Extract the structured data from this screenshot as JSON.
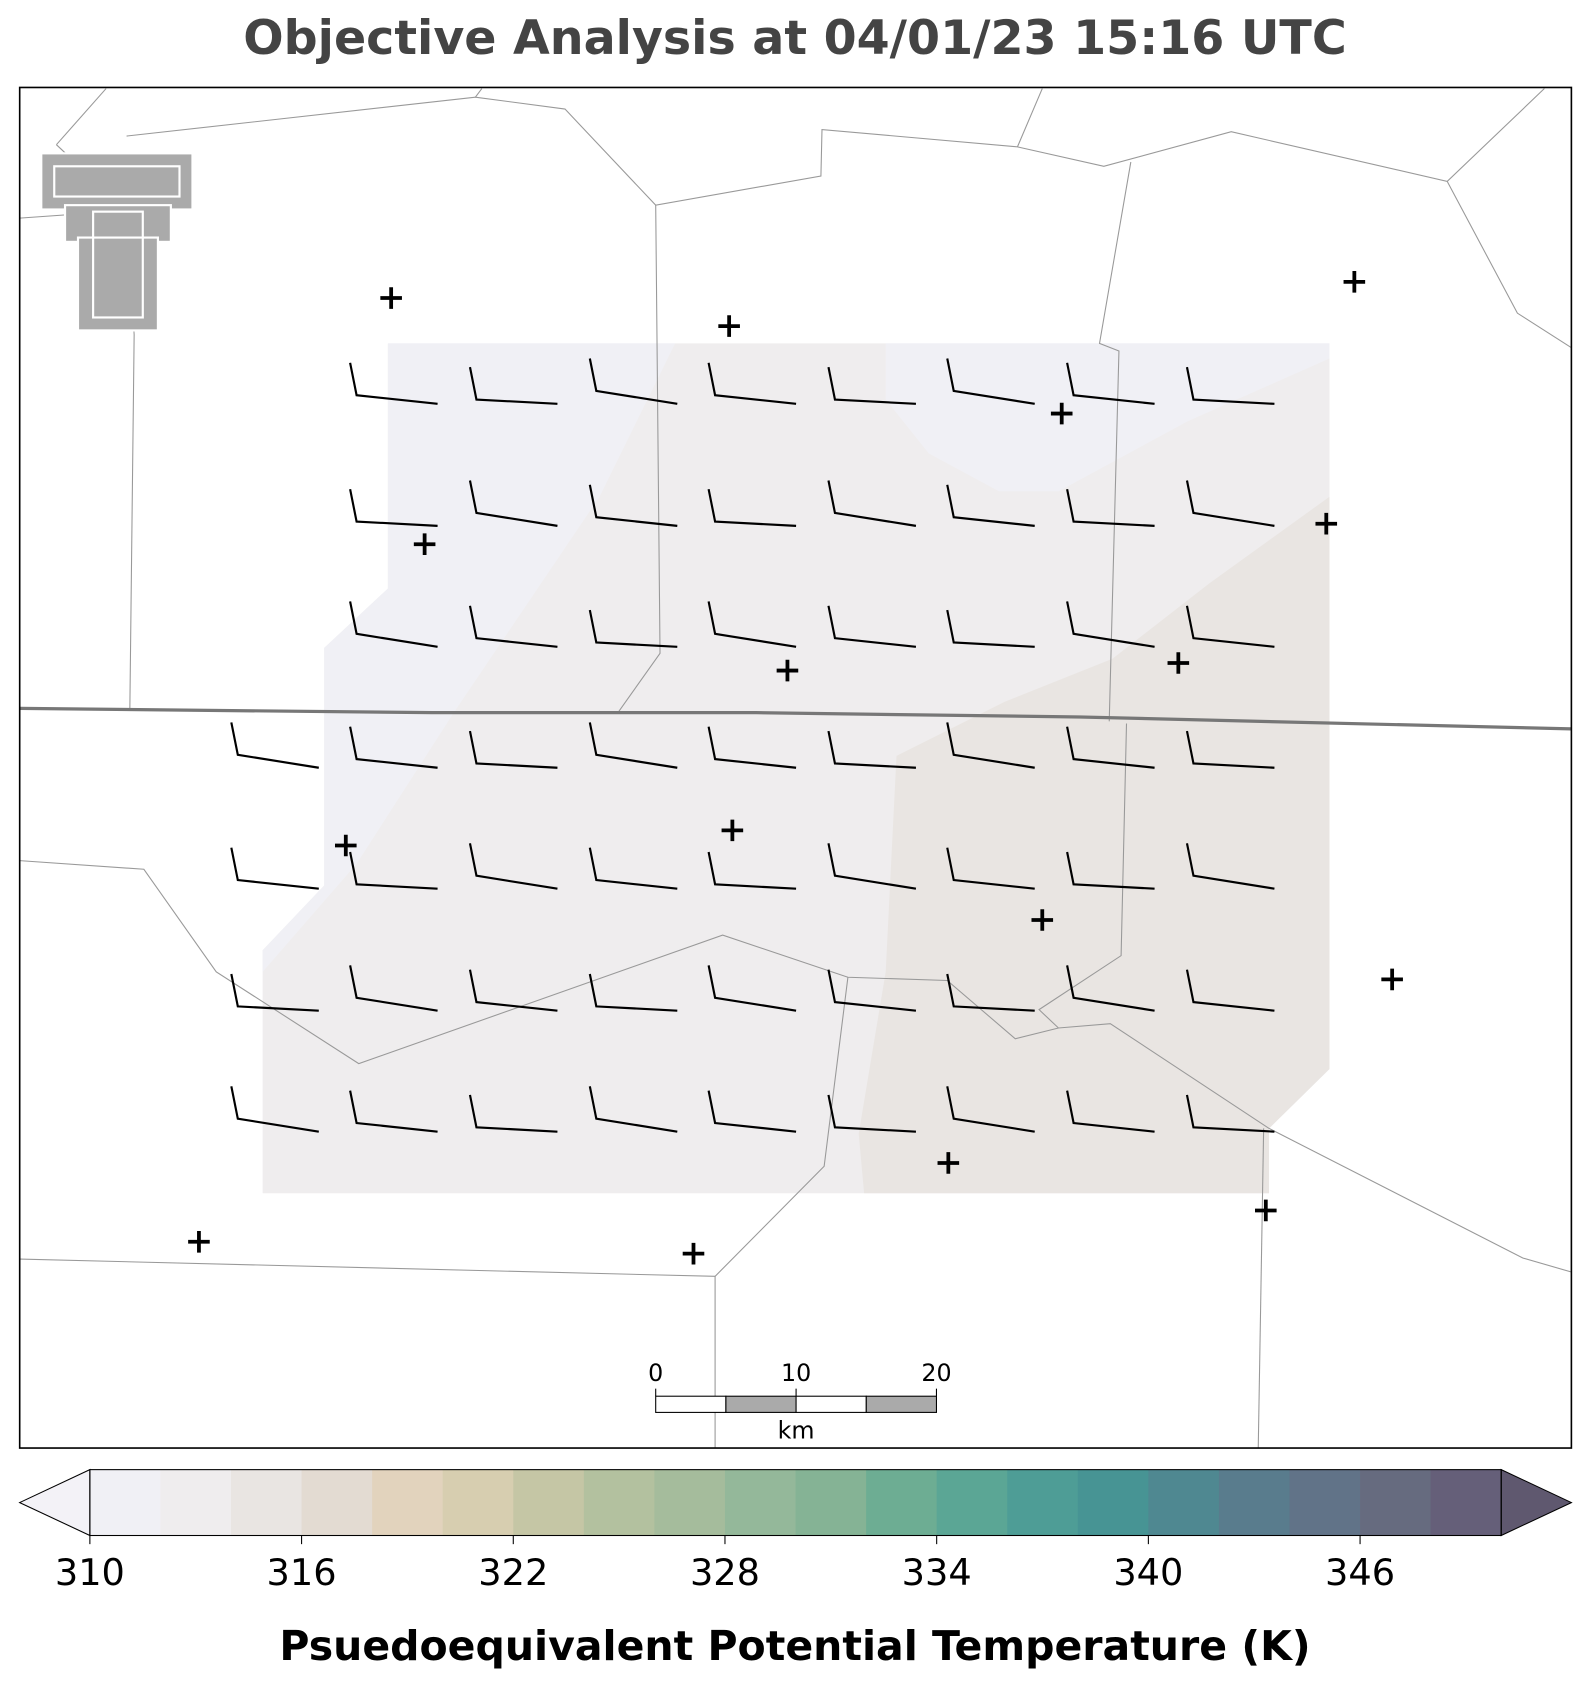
{
  "title": "Objective Analysis at 04/01/23 15:16 UTC",
  "scale_bar": {
    "ticks": [
      0,
      10,
      20
    ],
    "unit": "km"
  },
  "colorbar": {
    "label": "Psuedoequivalent Potential Temperature (K)",
    "lim": [
      310,
      350
    ],
    "ticks": [
      310,
      316,
      322,
      328,
      334,
      340,
      346
    ],
    "colors": [
      "#f0f0f5",
      "#efedee",
      "#e9e5e2",
      "#e3dbd2",
      "#e2d3bd",
      "#d7ceb0",
      "#c5c6a5",
      "#b3c19f",
      "#a5bc9c",
      "#94b89a",
      "#85b395",
      "#6dad93",
      "#5ba695",
      "#4e9d96",
      "#479494",
      "#4f8891",
      "#597c8d",
      "#617388",
      "#666b7f",
      "#655f79"
    ],
    "extend_colors": [
      "#f3f2f7",
      "#5f586f"
    ]
  }
}
